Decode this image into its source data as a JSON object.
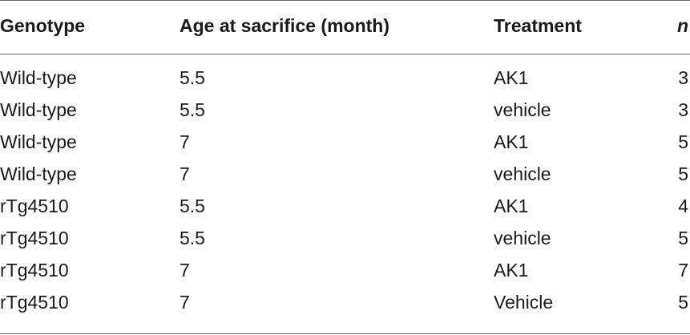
{
  "table": {
    "headers": {
      "genotype": "Genotype",
      "age": "Age at sacrifice (month)",
      "treatment": "Treatment",
      "n": "n"
    },
    "rows": [
      {
        "genotype": "Wild-type",
        "age": "5.5",
        "treatment": "AK1",
        "n": "3"
      },
      {
        "genotype": "Wild-type",
        "age": "5.5",
        "treatment": "vehicle",
        "n": "3"
      },
      {
        "genotype": "Wild-type",
        "age": "7",
        "treatment": "AK1",
        "n": "5"
      },
      {
        "genotype": "Wild-type",
        "age": "7",
        "treatment": "vehicle",
        "n": "5"
      },
      {
        "genotype": "rTg4510",
        "age": "5.5",
        "treatment": "AK1",
        "n": "4"
      },
      {
        "genotype": "rTg4510",
        "age": "5.5",
        "treatment": "vehicle",
        "n": "5"
      },
      {
        "genotype": "rTg4510",
        "age": "7",
        "treatment": "AK1",
        "n": "7"
      },
      {
        "genotype": "rTg4510",
        "age": "7",
        "treatment": "Vehicle",
        "n": "5"
      }
    ]
  }
}
